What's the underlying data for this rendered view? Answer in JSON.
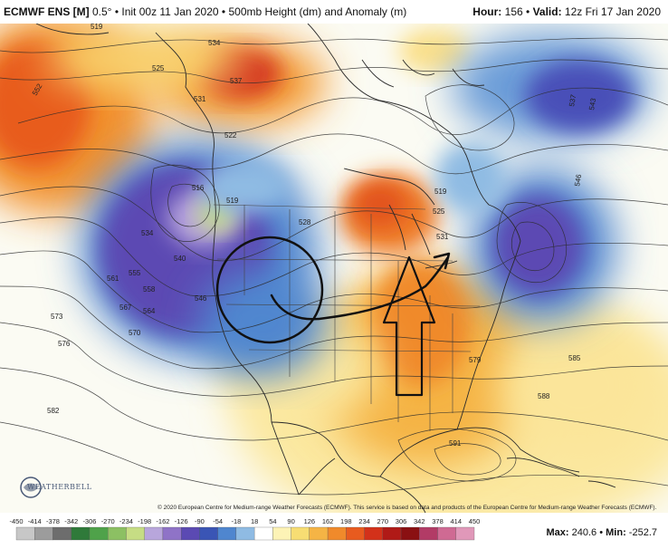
{
  "header": {
    "model": "ECMWF ENS [M]",
    "resolution": "0.5°",
    "init": "Init 00z 11 Jan 2020",
    "product": "500mb Height (dm) and Anomaly (m)",
    "hour_label": "Hour:",
    "hour_value": "156",
    "valid_label": "Valid:",
    "valid_value": "12z Fri 17 Jan 2020"
  },
  "copyright": "© 2020 European Centre for Medium-range Weather Forecasts (ECMWF). This service is based on data and products of the European Centre for Medium-range Weather Forecasts (ECMWF).",
  "logo_text": "WEATHERBELL",
  "stats": {
    "max_label": "Max:",
    "max_value": "240.6",
    "min_label": "Min:",
    "min_value": "-252.7"
  },
  "colorbar": {
    "ticks": [
      "-450",
      "-414",
      "-378",
      "-342",
      "-306",
      "-270",
      "-234",
      "-198",
      "-162",
      "-126",
      "-90",
      "-54",
      "-18",
      "18",
      "54",
      "90",
      "126",
      "162",
      "198",
      "234",
      "270",
      "306",
      "342",
      "378",
      "414",
      "450"
    ],
    "colors": [
      "#c7c7c7",
      "#9c9c9c",
      "#6d6d6d",
      "#2f7a3a",
      "#4fa24a",
      "#8cc063",
      "#c6dd84",
      "#b8a6dc",
      "#8f73c7",
      "#5b4ab3",
      "#3a55b5",
      "#4f86cf",
      "#8fbbe3",
      "#ffffff",
      "#fdf3b6",
      "#f7dd73",
      "#f5b445",
      "#f08a2b",
      "#e85b1f",
      "#d3311a",
      "#b01a17",
      "#8a1012",
      "#b23b66",
      "#cf6a93",
      "#e098b9"
    ]
  },
  "contour_labels": [
    {
      "t": "519",
      "c": "a"
    },
    {
      "t": "525",
      "c": "a"
    },
    {
      "t": "534",
      "c": "a"
    },
    {
      "t": "537",
      "c": "a"
    },
    {
      "t": "531",
      "c": "a"
    },
    {
      "t": "552",
      "c": "a"
    },
    {
      "t": "522",
      "c": "a"
    },
    {
      "t": "516",
      "c": "a"
    },
    {
      "t": "519",
      "c": "a"
    },
    {
      "t": "534",
      "c": "a"
    },
    {
      "t": "540",
      "c": "a"
    },
    {
      "t": "555",
      "c": "a"
    },
    {
      "t": "558",
      "c": "a"
    },
    {
      "t": "561",
      "c": "a"
    },
    {
      "t": "564",
      "c": "a"
    },
    {
      "t": "567",
      "c": "a"
    },
    {
      "t": "570",
      "c": "a"
    },
    {
      "t": "573",
      "c": "a"
    },
    {
      "t": "576",
      "c": "a"
    },
    {
      "t": "582",
      "c": "a"
    },
    {
      "t": "546",
      "c": "a"
    },
    {
      "t": "528",
      "c": "a"
    },
    {
      "t": "519",
      "c": "a"
    },
    {
      "t": "525",
      "c": "a"
    },
    {
      "t": "531",
      "c": "a"
    },
    {
      "t": "537",
      "c": "a"
    },
    {
      "t": "543",
      "c": "a"
    },
    {
      "t": "546",
      "c": "a"
    },
    {
      "t": "579",
      "c": "a"
    },
    {
      "t": "585",
      "c": "a"
    },
    {
      "t": "588",
      "c": "a"
    },
    {
      "t": "591",
      "c": "a"
    }
  ]
}
